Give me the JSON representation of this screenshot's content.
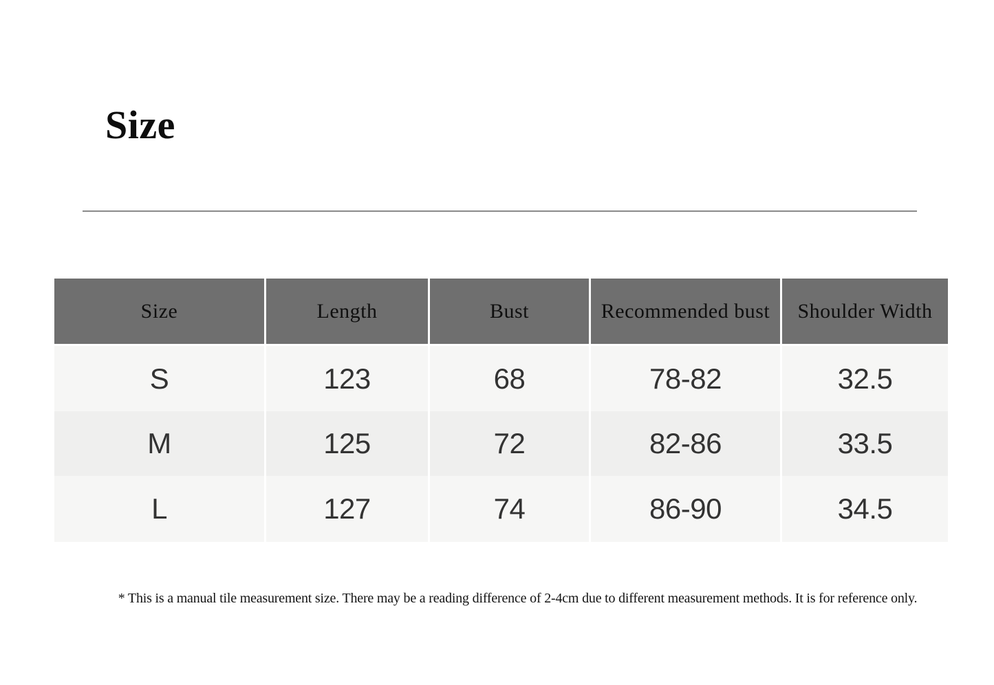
{
  "page": {
    "title": "Size",
    "footnote": "* This is a manual tile measurement size. There may be a reading difference of 2-4cm due to different measurement methods. It is for reference only."
  },
  "colors": {
    "header_bg": "#6f6f6f",
    "row_light_bg": "#f6f6f5",
    "row_alt_bg": "#efefee",
    "rule": "#8a8a8a",
    "header_text": "#0f0f0f",
    "body_text": "#333333"
  },
  "size_table": {
    "columns": [
      "Size",
      "Length",
      "Bust",
      "Recommended bust",
      "Shoulder Width"
    ],
    "rows": [
      [
        "S",
        "123",
        "68",
        "78-82",
        "32.5"
      ],
      [
        "M",
        "125",
        "72",
        "82-86",
        "33.5"
      ],
      [
        "L",
        "127",
        "74",
        "86-90",
        "34.5"
      ]
    ]
  }
}
